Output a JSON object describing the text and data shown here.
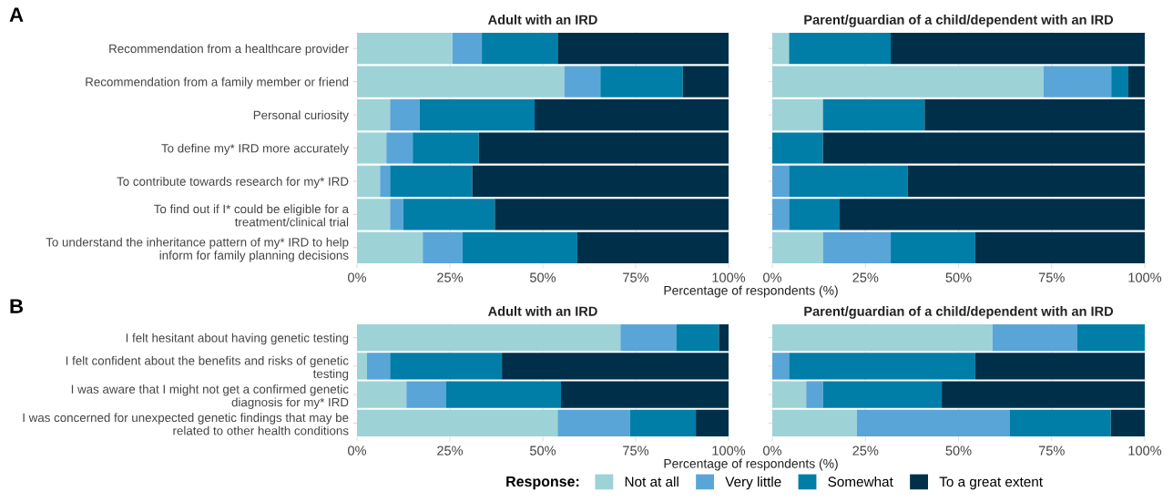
{
  "chart_data": [
    {
      "type": "bar",
      "orientation": "horizontal",
      "stacked": true,
      "title": "Adult with an IRD",
      "xlabel": "Percentage of respondents (%)",
      "annotations": [
        "A"
      ],
      "grid": true,
      "categories": [
        "Recommendation from a healthcare provider",
        "Recommendation from a family member or friend",
        "Personal curiosity",
        "To define my* IRD more accurately",
        "To contribute towards research for my* IRD",
        "To find out if I* could be eligible for a\ntreatment/clinical trial",
        "To understand the inheritance pattern of my* IRD to help\ninform for family planning decisions"
      ],
      "xlim": [
        0,
        100
      ],
      "xticks": [
        {
          "value": 0,
          "label": "0%"
        },
        {
          "value": 25,
          "label": "25%"
        },
        {
          "value": 50,
          "label": "50%"
        },
        {
          "value": 75,
          "label": "75%"
        },
        {
          "value": 100,
          "label": "100%"
        }
      ],
      "series": [
        {
          "color": "#9dd3d6",
          "values": [
            25.7,
            55.8,
            8.9,
            7.9,
            6.2,
            8.9,
            17.7
          ]
        },
        {
          "color": "#5aa5d7",
          "values": [
            7.9,
            9.7,
            8.0,
            7.1,
            2.7,
            3.5,
            10.7
          ]
        },
        {
          "color": "#007ea7",
          "values": [
            20.4,
            22.2,
            30.9,
            17.8,
            22.1,
            24.7,
            30.9
          ]
        },
        {
          "color": "#003049",
          "values": [
            46.0,
            12.3,
            52.2,
            67.2,
            69.0,
            62.9,
            40.7
          ]
        }
      ]
    },
    {
      "type": "bar",
      "orientation": "horizontal",
      "stacked": true,
      "title": "Parent/guardian of a child/dependent with an IRD",
      "grid": true,
      "tick_labels": "x",
      "categories": [
        null,
        null,
        null,
        null,
        null,
        null,
        null
      ],
      "xlim": [
        0,
        100
      ],
      "xticks": [
        {
          "value": 0,
          "label": "0%"
        },
        {
          "value": 25,
          "label": "25%"
        },
        {
          "value": 50,
          "label": "50%"
        },
        {
          "value": 75,
          "label": "75%"
        },
        {
          "value": 100,
          "label": "100%"
        }
      ],
      "series": [
        {
          "color": "#9dd3d6",
          "values": [
            4.5,
            72.8,
            13.6,
            0,
            0,
            0,
            13.6
          ]
        },
        {
          "color": "#5aa5d7",
          "values": [
            0,
            18.2,
            0,
            0,
            4.5,
            4.5,
            18.2
          ]
        },
        {
          "color": "#007ea7",
          "values": [
            27.3,
            4.6,
            27.3,
            13.6,
            31.9,
            13.6,
            22.7
          ]
        },
        {
          "color": "#003049",
          "values": [
            68.2,
            4.4,
            59.1,
            86.4,
            63.6,
            81.9,
            45.5
          ]
        }
      ]
    },
    {
      "type": "bar",
      "orientation": "horizontal",
      "stacked": true,
      "title": "Adult with an IRD",
      "xlabel": "Percentage of respondents (%)",
      "annotations": [
        "B"
      ],
      "grid": true,
      "categories": [
        "I felt hesitant about having genetic testing",
        "I felt confident about the benefits and risks of genetic\ntesting",
        "I was aware that I might not get a confirmed genetic\ndiagnosis for my* IRD",
        "I was concerned for unexpected genetic findings that may be\nrelated to other health conditions"
      ],
      "xlim": [
        0,
        100
      ],
      "xticks": [
        {
          "value": 0,
          "label": "0%"
        },
        {
          "value": 25,
          "label": "25%"
        },
        {
          "value": 50,
          "label": "50%"
        },
        {
          "value": 75,
          "label": "75%"
        },
        {
          "value": 100,
          "label": "100%"
        }
      ],
      "series": [
        {
          "color": "#9dd3d6",
          "values": [
            70.9,
            2.7,
            13.3,
            54.0
          ]
        },
        {
          "color": "#5aa5d7",
          "values": [
            15.0,
            6.2,
            10.6,
            19.5
          ]
        },
        {
          "color": "#007ea7",
          "values": [
            11.5,
            30.1,
            31.0,
            17.7
          ]
        },
        {
          "color": "#003049",
          "values": [
            2.6,
            61.0,
            45.1,
            8.8
          ]
        }
      ]
    },
    {
      "type": "bar",
      "orientation": "horizontal",
      "stacked": true,
      "title": "Parent/guardian of a child/dependent with an IRD",
      "grid": true,
      "tick_labels": "x",
      "legend": "bottom",
      "legend_title": "Response:",
      "categories": [
        null,
        null,
        null,
        null
      ],
      "xlim": [
        0,
        100
      ],
      "xticks": [
        {
          "value": 0,
          "label": "0%"
        },
        {
          "value": 25,
          "label": "25%"
        },
        {
          "value": 50,
          "label": "50%"
        },
        {
          "value": 75,
          "label": "75%"
        },
        {
          "value": 100,
          "label": "100%"
        }
      ],
      "series": [
        {
          "name": "Not at all",
          "color": "#9dd3d6",
          "values": [
            59.1,
            0,
            9.1,
            22.7
          ]
        },
        {
          "name": "Very little",
          "color": "#5aa5d7",
          "values": [
            22.8,
            4.5,
            4.5,
            41.0
          ]
        },
        {
          "name": "Somewhat",
          "color": "#007ea7",
          "values": [
            18.1,
            50.0,
            31.9,
            27.2
          ]
        },
        {
          "name": "To a great extent",
          "color": "#003049",
          "values": [
            0,
            45.5,
            54.5,
            9.1
          ]
        }
      ]
    }
  ]
}
